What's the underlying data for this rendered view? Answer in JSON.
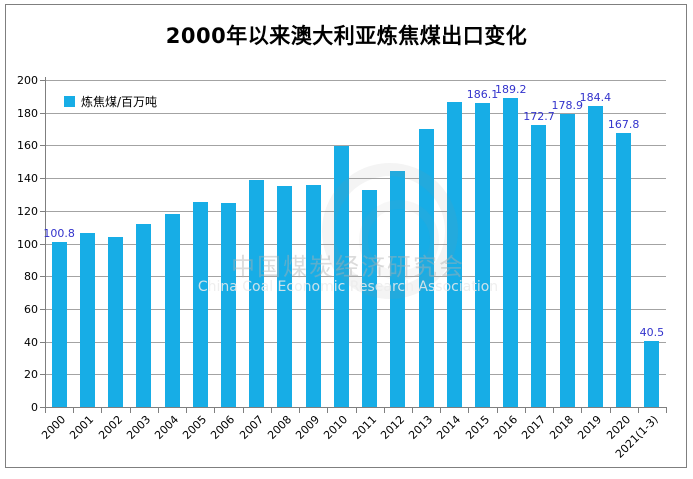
{
  "title": "2000年以来澳大利亚炼焦煤出口变化",
  "legend": {
    "label": "炼焦煤/百万吨"
  },
  "colors": {
    "bar": "#17ade6",
    "data_label": "#3333cc",
    "gridline": "#a3a3a3",
    "axis": "#7f7f7f"
  },
  "watermark": {
    "zh": "中国煤炭经济研究会",
    "en": "China Coal Economic Research Association"
  },
  "chart_data": {
    "type": "bar",
    "title": "2000年以来澳大利亚炼焦煤出口变化",
    "categories": [
      "2000",
      "2001",
      "2002",
      "2003",
      "2004",
      "2005",
      "2006",
      "2007",
      "2008",
      "2009",
      "2010",
      "2011",
      "2012",
      "2013",
      "2014",
      "2015",
      "2016",
      "2017",
      "2018",
      "2019",
      "2020",
      "2021(1-3)"
    ],
    "values": [
      100.8,
      106.4,
      104.2,
      112.0,
      117.8,
      125.3,
      124.6,
      138.6,
      135.0,
      135.8,
      159.5,
      132.8,
      144.6,
      170.3,
      186.4,
      186.1,
      189.2,
      172.7,
      178.9,
      184.4,
      167.8,
      40.5
    ],
    "data_labels": [
      "100.8",
      null,
      null,
      null,
      null,
      null,
      null,
      null,
      null,
      null,
      null,
      null,
      null,
      null,
      null,
      "186.1",
      "189.2",
      "172.7",
      "178.9",
      "184.4",
      "167.8",
      "40.5"
    ],
    "series_name": "炼焦煤/百万吨",
    "xlabel": "",
    "ylabel": "",
    "ylim": [
      0,
      200
    ],
    "ytick_step": 20,
    "ytick_labels": [
      "0",
      "20",
      "40",
      "60",
      "80",
      "100",
      "120",
      "140",
      "160",
      "180",
      "200"
    ],
    "grid": true,
    "legend_position": "top-left-inside"
  }
}
